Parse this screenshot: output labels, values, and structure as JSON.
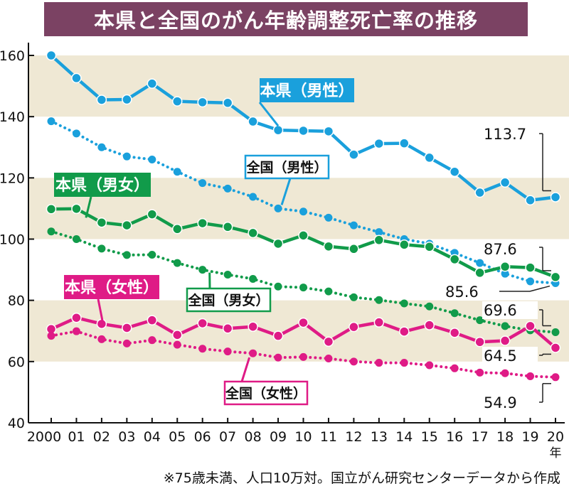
{
  "colors": {
    "title_bg": "#7b4263",
    "band": "#efe8d4",
    "blue": "#1aa0dc",
    "green": "#119b4a",
    "pink": "#df1b86"
  },
  "title": "本県と全国のがん年齢調整死亡率の推移",
  "footnote": "※75歳未満、人口10万対。国立がん研究センターデータから作成",
  "chart_data": {
    "type": "line",
    "title": "本県と全国のがん年齢調整死亡率の推移",
    "x": [
      "2000",
      "01",
      "02",
      "03",
      "04",
      "05",
      "06",
      "07",
      "08",
      "09",
      "10",
      "11",
      "12",
      "13",
      "14",
      "15",
      "16",
      "17",
      "18",
      "19",
      "20"
    ],
    "x_unit": "年",
    "ylim": [
      40,
      160
    ],
    "yticks": [
      40,
      60,
      80,
      100,
      120,
      140,
      160
    ],
    "grid": false,
    "series": [
      {
        "name": "本県（男性）",
        "color": "#1aa0dc",
        "style": "solid",
        "values": [
          160,
          152.6,
          145.5,
          145.6,
          150.8,
          145,
          144.7,
          144.5,
          138.4,
          135.6,
          135.4,
          135.2,
          127.6,
          131.2,
          131.3,
          126.6,
          122,
          115.2,
          118.5,
          112.7,
          113.7
        ]
      },
      {
        "name": "全国（男性）",
        "color": "#1aa0dc",
        "style": "dotted",
        "values": [
          138.5,
          134.5,
          130,
          127,
          126,
          122,
          118.3,
          116.5,
          113.8,
          110,
          109,
          107,
          104.5,
          102.3,
          100,
          98.5,
          95.5,
          92.2,
          88.7,
          86.2,
          85.6
        ]
      },
      {
        "name": "本県（男女）",
        "color": "#119b4a",
        "style": "solid",
        "values": [
          109.8,
          109.9,
          105.4,
          104.5,
          108.1,
          103.3,
          105.2,
          104,
          102,
          98.5,
          101.2,
          97.6,
          96.8,
          99.7,
          98.2,
          97.5,
          93.4,
          89,
          91,
          90.7,
          87.6
        ]
      },
      {
        "name": "全国（男女）",
        "color": "#119b4a",
        "style": "dotted",
        "values": [
          102.5,
          100,
          96.9,
          94.8,
          94.9,
          92.2,
          90,
          88.4,
          87,
          84.5,
          84.2,
          82.9,
          81,
          80.1,
          79,
          78,
          75.8,
          73.5,
          71.6,
          70.2,
          69.6
        ]
      },
      {
        "name": "本県（女性）",
        "color": "#df1b86",
        "style": "solid",
        "values": [
          70.6,
          74.3,
          72.3,
          71,
          73.5,
          68.7,
          72.5,
          70.8,
          71.4,
          68.4,
          72.7,
          66.5,
          71.3,
          72.8,
          69.8,
          71.9,
          69.4,
          66.4,
          66.8,
          71.6,
          64.5
        ]
      },
      {
        "name": "全国（女性）",
        "color": "#df1b86",
        "style": "dotted",
        "values": [
          68.4,
          69.9,
          67.3,
          65.9,
          67,
          65.5,
          64.2,
          63.3,
          62.7,
          61.3,
          61.5,
          61,
          60,
          59.6,
          59.6,
          58.8,
          57.8,
          56.4,
          56.2,
          55.2,
          54.9
        ]
      }
    ],
    "bands": [
      [
        140,
        160
      ],
      [
        100,
        120
      ],
      [
        60,
        80
      ]
    ],
    "end_labels": [
      "113.7",
      "87.6",
      "85.6",
      "69.6",
      "64.5",
      "54.9"
    ]
  }
}
